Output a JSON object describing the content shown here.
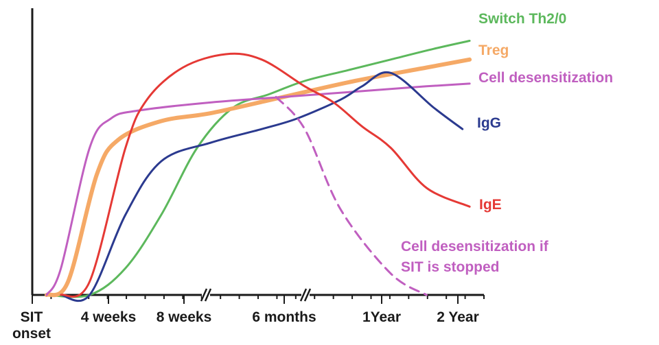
{
  "chart_data": {
    "type": "line",
    "title": "",
    "xlabel": "",
    "ylabel": "",
    "x_ticks": [
      "SIT onset",
      "4 weeks",
      "8 weeks",
      "6 months",
      "1Year",
      "2 Year"
    ],
    "x_breaks": [
      "8 weeks to 6 months",
      "6 months to 1Year"
    ],
    "series": [
      {
        "name": "Switch Th2/0",
        "color": "#5cb85c",
        "style": "solid",
        "points": [
          [
            0.2,
            0
          ],
          [
            0.8,
            0
          ],
          [
            1.3,
            0.1
          ],
          [
            1.8,
            0.3
          ],
          [
            2.3,
            0.55
          ],
          [
            2.8,
            0.7
          ],
          [
            3.3,
            0.75
          ],
          [
            3.8,
            0.8
          ],
          [
            4.4,
            0.84
          ],
          [
            5,
            0.88
          ],
          [
            5.6,
            0.92
          ],
          [
            6.1,
            0.95
          ]
        ]
      },
      {
        "name": "Treg",
        "color": "#f5a966",
        "style": "solid",
        "points": [
          [
            0.2,
            0
          ],
          [
            0.5,
            0.05
          ],
          [
            0.9,
            0.45
          ],
          [
            1.2,
            0.58
          ],
          [
            1.8,
            0.65
          ],
          [
            2.5,
            0.68
          ],
          [
            3.5,
            0.74
          ],
          [
            4.5,
            0.8
          ],
          [
            5.5,
            0.85
          ],
          [
            6.1,
            0.88
          ]
        ]
      },
      {
        "name": "Cell desensitization",
        "color": "#c05fc0",
        "style": "solid",
        "points": [
          [
            0.2,
            0
          ],
          [
            0.4,
            0.1
          ],
          [
            0.8,
            0.55
          ],
          [
            1.1,
            0.66
          ],
          [
            1.5,
            0.69
          ],
          [
            2.5,
            0.72
          ],
          [
            3.5,
            0.74
          ],
          [
            4.5,
            0.76
          ],
          [
            5.5,
            0.78
          ],
          [
            6.1,
            0.79
          ]
        ]
      },
      {
        "name": "IgG",
        "color": "#2b3a8f",
        "style": "solid",
        "points": [
          [
            0.4,
            0
          ],
          [
            0.8,
            0
          ],
          [
            1.3,
            0.3
          ],
          [
            1.8,
            0.5
          ],
          [
            2.5,
            0.57
          ],
          [
            3.2,
            0.62
          ],
          [
            3.7,
            0.66
          ],
          [
            4.3,
            0.73
          ],
          [
            4.6,
            0.78
          ],
          [
            5.0,
            0.83
          ],
          [
            5.6,
            0.7
          ],
          [
            6.0,
            0.62
          ]
        ]
      },
      {
        "name": "IgE",
        "color": "#e53935",
        "style": "solid",
        "points": [
          [
            0.4,
            0
          ],
          [
            0.8,
            0.05
          ],
          [
            1.3,
            0.55
          ],
          [
            1.6,
            0.73
          ],
          [
            2.1,
            0.85
          ],
          [
            2.7,
            0.9
          ],
          [
            3.2,
            0.88
          ],
          [
            3.8,
            0.78
          ],
          [
            4.2,
            0.72
          ],
          [
            4.6,
            0.63
          ],
          [
            5.0,
            0.55
          ],
          [
            5.5,
            0.4
          ],
          [
            6.1,
            0.33
          ]
        ]
      },
      {
        "name": "Cell desensitization if SIT is stopped",
        "color": "#c05fc0",
        "style": "dashed",
        "points": [
          [
            3.4,
            0.74
          ],
          [
            3.8,
            0.62
          ],
          [
            4.3,
            0.32
          ],
          [
            5.0,
            0.08
          ],
          [
            5.5,
            0
          ]
        ]
      }
    ],
    "xlim": [
      0,
      6.3
    ],
    "ylim": [
      0,
      1
    ],
    "grid": false,
    "legend": "inline labels"
  }
}
